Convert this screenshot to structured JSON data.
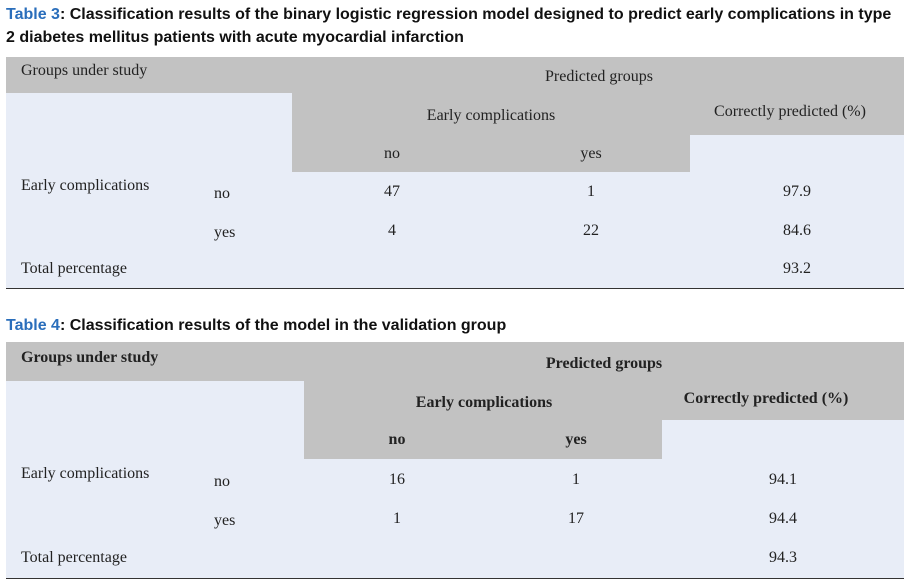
{
  "tables": [
    {
      "label": "Table 3",
      "caption": ": Classification results of the binary logistic regression model designed to predict early complications in type 2 diabetes mellitus patients with acute myocardial infarction",
      "header": {
        "groups": "Groups under study",
        "predicted": "Predicted groups",
        "early": "Early complications",
        "correct": "Correctly predicted (%)",
        "no": "no",
        "yes": "yes"
      },
      "rows": [
        {
          "group": "Early complications",
          "sub": "no",
          "no": "47",
          "yes": "1",
          "pct": "97.9"
        },
        {
          "sub": "yes",
          "no": "4",
          "yes": "22",
          "pct": "84.6"
        },
        {
          "group": "Total percentage",
          "pct": "93.2"
        }
      ]
    },
    {
      "label": "Table 4",
      "caption": ": Classification results of the model in the validation group",
      "header": {
        "groups": "Groups under study",
        "predicted": "Predicted groups",
        "early": "Early complications",
        "correct": "Correctly predicted (%)",
        "no": "no",
        "yes": "yes"
      },
      "rows": [
        {
          "group": "Early complications",
          "sub": "no",
          "no": "16",
          "yes": "1",
          "pct": "94.1"
        },
        {
          "sub": "yes",
          "no": "1",
          "yes": "17",
          "pct": "94.4"
        },
        {
          "group": "Total percentage",
          "pct": "94.3"
        }
      ]
    }
  ]
}
